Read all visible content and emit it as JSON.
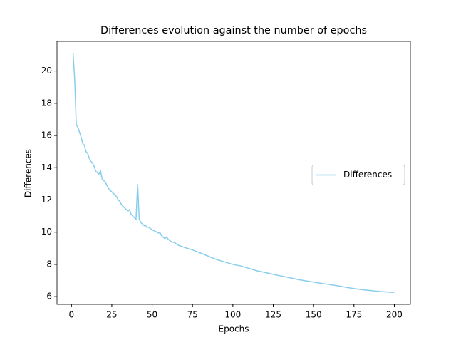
{
  "chart_data": {
    "type": "line",
    "title": "Differences evolution against the number of epochs",
    "xlabel": "Epochs",
    "ylabel": "Differences",
    "x": [
      1,
      2,
      3,
      4,
      5,
      6,
      7,
      8,
      9,
      10,
      11,
      12,
      13,
      14,
      15,
      16,
      17,
      18,
      19,
      20,
      21,
      22,
      23,
      24,
      25,
      26,
      27,
      28,
      29,
      30,
      31,
      32,
      33,
      34,
      35,
      36,
      37,
      38,
      39,
      40,
      41,
      42,
      43,
      44,
      45,
      46,
      47,
      48,
      50,
      52,
      54,
      55,
      56,
      58,
      59,
      60,
      62,
      64,
      66,
      70,
      75,
      80,
      85,
      90,
      95,
      100,
      105,
      110,
      115,
      120,
      125,
      130,
      135,
      140,
      145,
      150,
      155,
      160,
      165,
      170,
      175,
      180,
      185,
      190,
      195,
      200
    ],
    "series": [
      {
        "name": "Differences",
        "color": "#87ceeb",
        "values": [
          21.1,
          19.5,
          16.7,
          16.5,
          16.2,
          15.9,
          15.5,
          15.4,
          15.0,
          14.9,
          14.6,
          14.4,
          14.3,
          14.1,
          13.8,
          13.7,
          13.6,
          13.8,
          13.3,
          13.2,
          13.1,
          12.9,
          12.7,
          12.6,
          12.5,
          12.4,
          12.3,
          12.2,
          12.0,
          11.9,
          11.7,
          11.6,
          11.5,
          11.4,
          11.3,
          11.4,
          11.1,
          11.0,
          10.9,
          10.8,
          13.0,
          10.8,
          10.6,
          10.5,
          10.4,
          10.4,
          10.3,
          10.3,
          10.15,
          10.05,
          9.95,
          9.95,
          9.75,
          9.6,
          9.7,
          9.55,
          9.4,
          9.35,
          9.2,
          9.05,
          8.9,
          8.7,
          8.5,
          8.3,
          8.15,
          8.0,
          7.9,
          7.75,
          7.6,
          7.5,
          7.38,
          7.28,
          7.18,
          7.07,
          6.98,
          6.9,
          6.82,
          6.75,
          6.67,
          6.58,
          6.5,
          6.43,
          6.38,
          6.33,
          6.29,
          6.26
        ]
      }
    ],
    "xlim": [
      -8.95,
      209.95
    ],
    "ylim": [
      5.52,
      21.84
    ],
    "xticks": [
      0,
      25,
      50,
      75,
      100,
      125,
      150,
      175,
      200
    ],
    "yticks": [
      6,
      8,
      10,
      12,
      14,
      16,
      18,
      20
    ],
    "legend": "center right"
  }
}
